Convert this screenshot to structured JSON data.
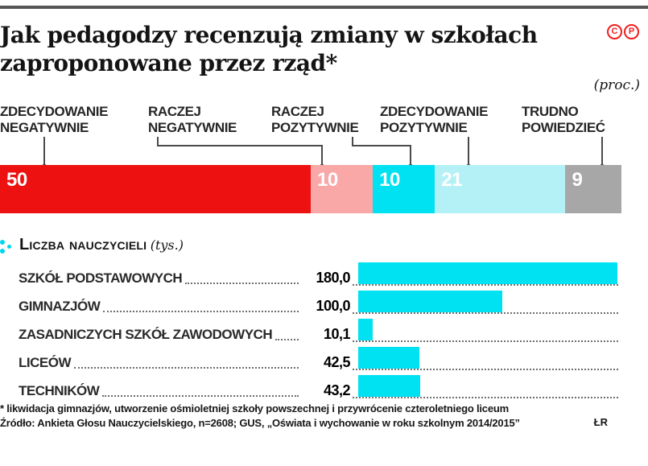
{
  "header": {
    "title_line1": "Jak pedagodzy recenzują zmiany w szkołach",
    "title_line2": "zaproponowane przez rząd*",
    "unit_note": "(proc.)",
    "badges": [
      "C",
      "P"
    ]
  },
  "stacked_chart": {
    "labels": [
      {
        "line1": "ZDECYDOWANIE",
        "line2": "NEGATYWNIE"
      },
      {
        "line1": "RACZEJ",
        "line2": "NEGATYWNIE"
      },
      {
        "line1": "RACZEJ",
        "line2": "POZYTYWNIE"
      },
      {
        "line1": "ZDECYDOWANIE",
        "line2": "POZYTYWNIE"
      },
      {
        "line1": "TRUDNO",
        "line2": "POWIEDZIEĆ"
      }
    ],
    "values": [
      "50",
      "10",
      "10",
      "21",
      "9"
    ]
  },
  "teacher_chart": {
    "heading": "Liczba nauczycieli",
    "unit": "(tys.)",
    "rows": [
      {
        "label": "SZKÓŁ PODSTAWOWYCH",
        "value": "180,0"
      },
      {
        "label": "GIMNAZJÓW",
        "value": "100,0"
      },
      {
        "label": "ZASADNICZYCH SZKÓŁ ZAWODOWYCH",
        "value": "10,1"
      },
      {
        "label": "LICEÓW",
        "value": "42,5"
      },
      {
        "label": "TECHNIKÓW",
        "value": "43,2"
      }
    ]
  },
  "footer": {
    "note": "* likwidacja gimnazjów, utworzenie ośmioletniej szkoły powszechnej i przywrócenie czteroletniego liceum",
    "source": "Źródło: Ankieta Głosu Nauczycielskiego, n=2608; GUS, „Oświata i wychowanie w roku szkolnym 2014/2015”",
    "credit": "ŁR"
  },
  "chart_data": [
    {
      "type": "bar",
      "orientation": "horizontal-stacked",
      "title": "Jak pedagodzy recenzują zmiany w szkołach zaproponowane przez rząd*",
      "unit": "proc.",
      "categories": [
        "Zdecydowanie negatywnie",
        "Raczej negatywnie",
        "Raczej pozytywnie",
        "Zdecydowanie pozytywnie",
        "Trudno powiedzieć"
      ],
      "values": [
        50,
        10,
        10,
        21,
        9
      ],
      "colors": [
        "#ed1111",
        "#f9a7a7",
        "#00e2f2",
        "#b4f1f6",
        "#a7a7a7"
      ],
      "value_label_color": "#ffffff",
      "xlim": [
        0,
        100
      ]
    },
    {
      "type": "bar",
      "orientation": "horizontal",
      "title": "Liczba nauczycieli (tys.)",
      "categories": [
        "Szkół podstawowych",
        "Gimnazjów",
        "Zasadniczych szkół zawodowych",
        "Liceów",
        "Techników"
      ],
      "values": [
        180.0,
        100.0,
        10.1,
        42.5,
        43.2
      ],
      "xlim": [
        0,
        180
      ],
      "bar_color": "#00e2f2",
      "grid": false,
      "legend": false
    }
  ]
}
